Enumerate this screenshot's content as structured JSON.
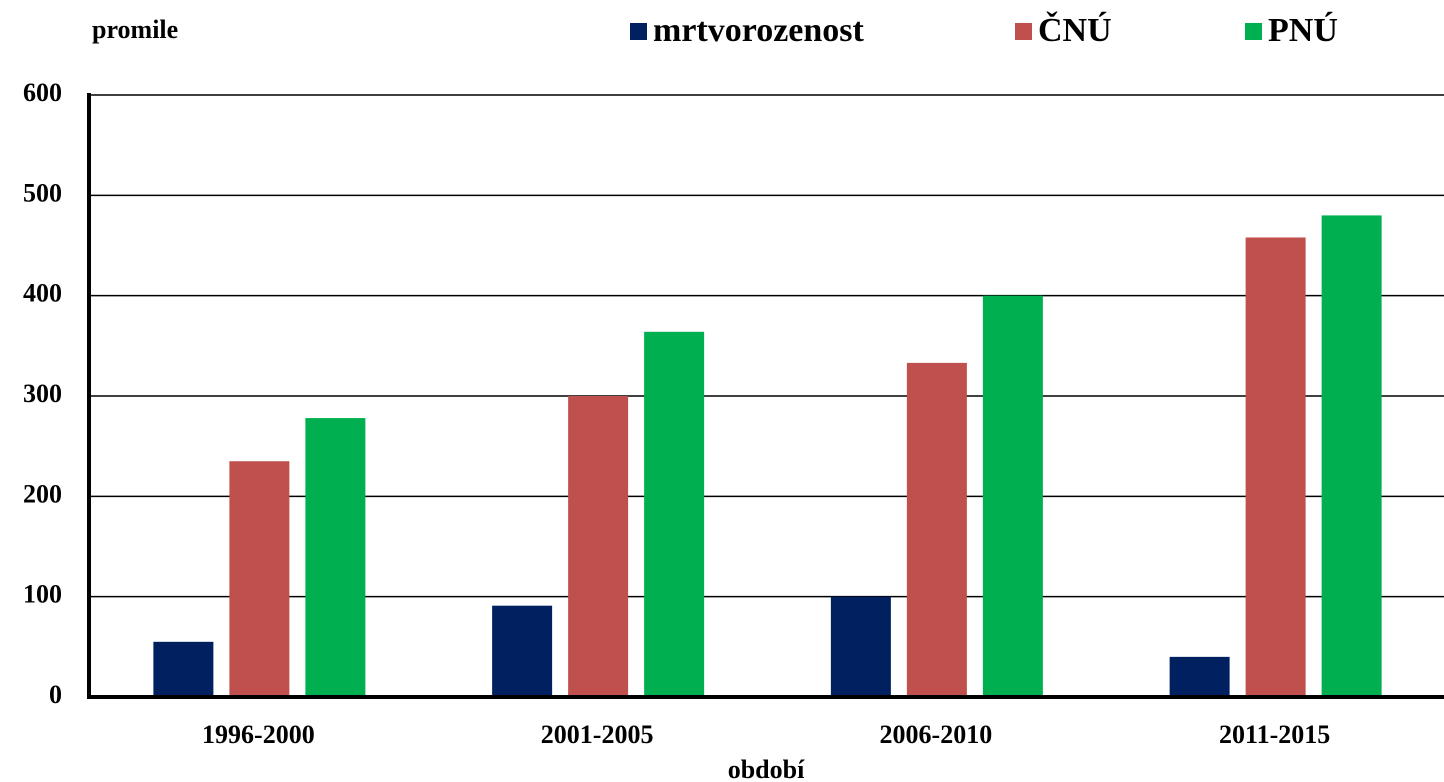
{
  "chart_data": {
    "type": "bar",
    "ylabel": "promile",
    "xlabel": "období",
    "categories": [
      "1996-2000",
      "2001-2005",
      "2006-2010",
      "2011-2015"
    ],
    "series": [
      {
        "name": "mrtvorozenost",
        "color": "#002060",
        "values": [
          55,
          91,
          100,
          40
        ]
      },
      {
        "name": "ČNÚ",
        "color": "#c0504d",
        "values": [
          235,
          300,
          333,
          458
        ]
      },
      {
        "name": "PNÚ",
        "color": "#00b050",
        "values": [
          278,
          364,
          400,
          480
        ]
      }
    ],
    "ylim": [
      0,
      600
    ],
    "yticks": [
      0,
      100,
      200,
      300,
      400,
      500,
      600
    ],
    "grid": true,
    "legend": "top"
  }
}
